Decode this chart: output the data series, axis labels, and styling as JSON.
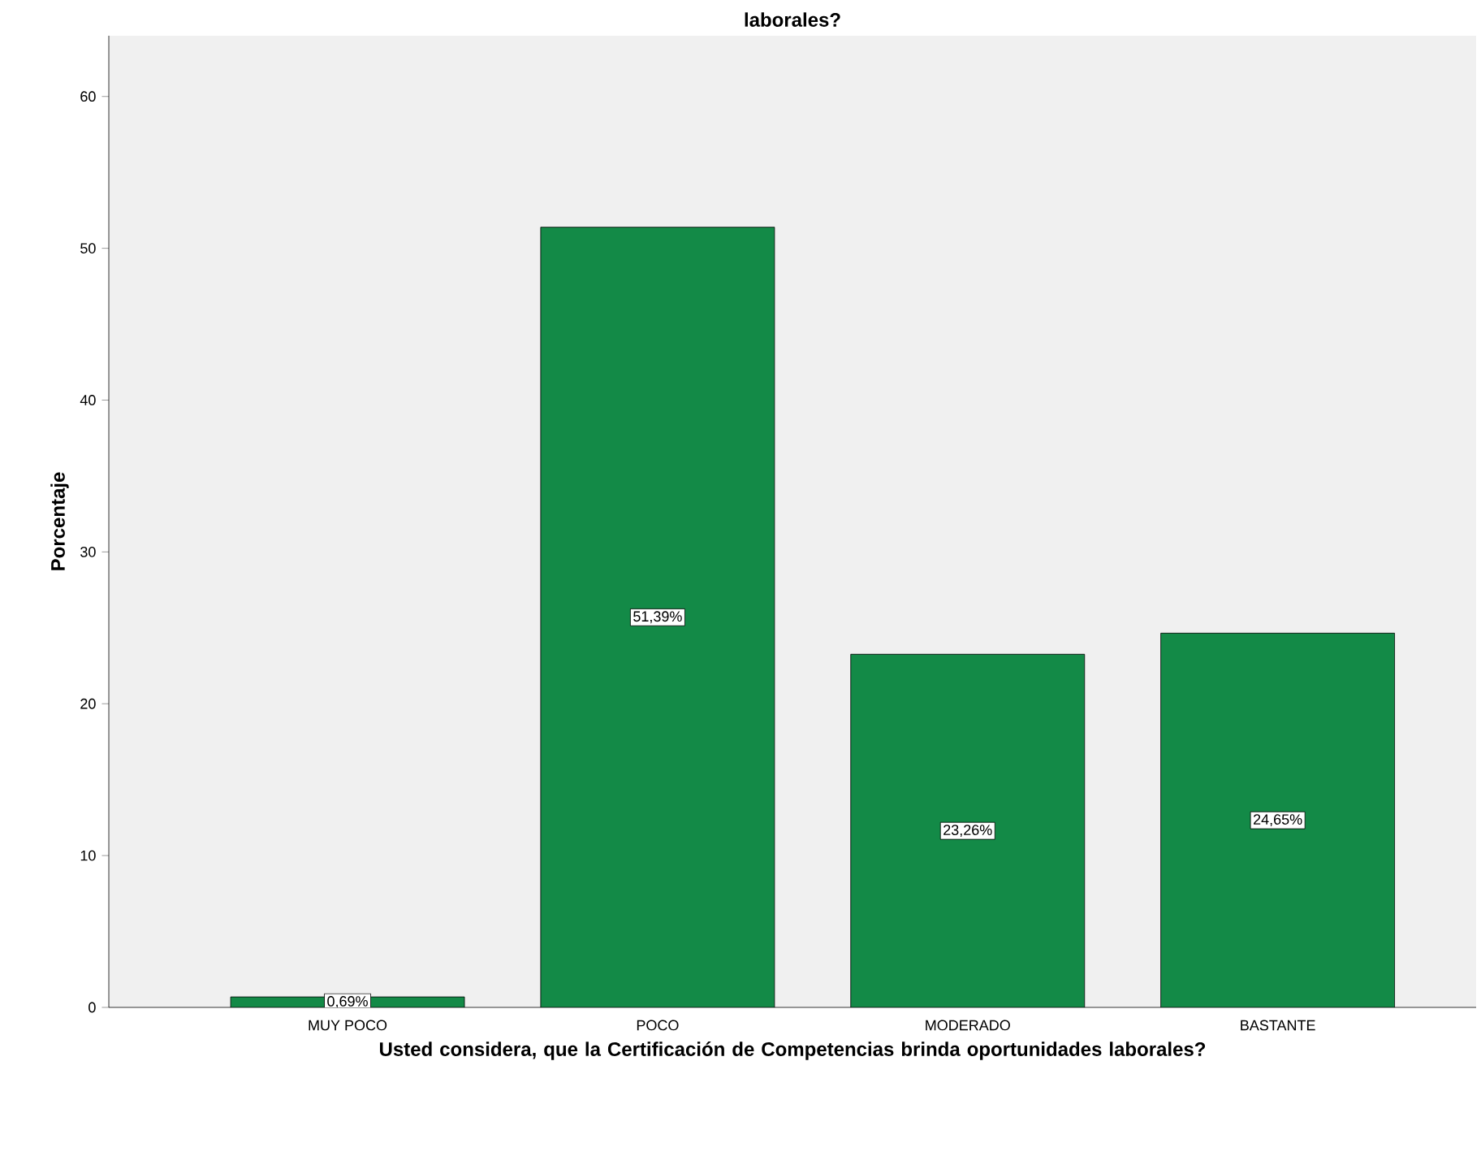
{
  "chart_data": {
    "type": "bar",
    "title": "laborales?",
    "xlabel": "Usted considera, que la Certificación de Competencias brinda oportunidades laborales?",
    "ylabel": "Porcentaje",
    "categories": [
      "MUY POCO",
      "POCO",
      "MODERADO",
      "BASTANTE"
    ],
    "values": [
      0.69,
      51.39,
      23.26,
      24.65
    ],
    "value_labels": [
      "0,69%",
      "51,39%",
      "23,26%",
      "24,65%"
    ],
    "color": "#138a47",
    "ylim": [
      0,
      64
    ],
    "yticks": [
      0,
      10,
      20,
      30,
      40,
      50,
      60
    ]
  }
}
